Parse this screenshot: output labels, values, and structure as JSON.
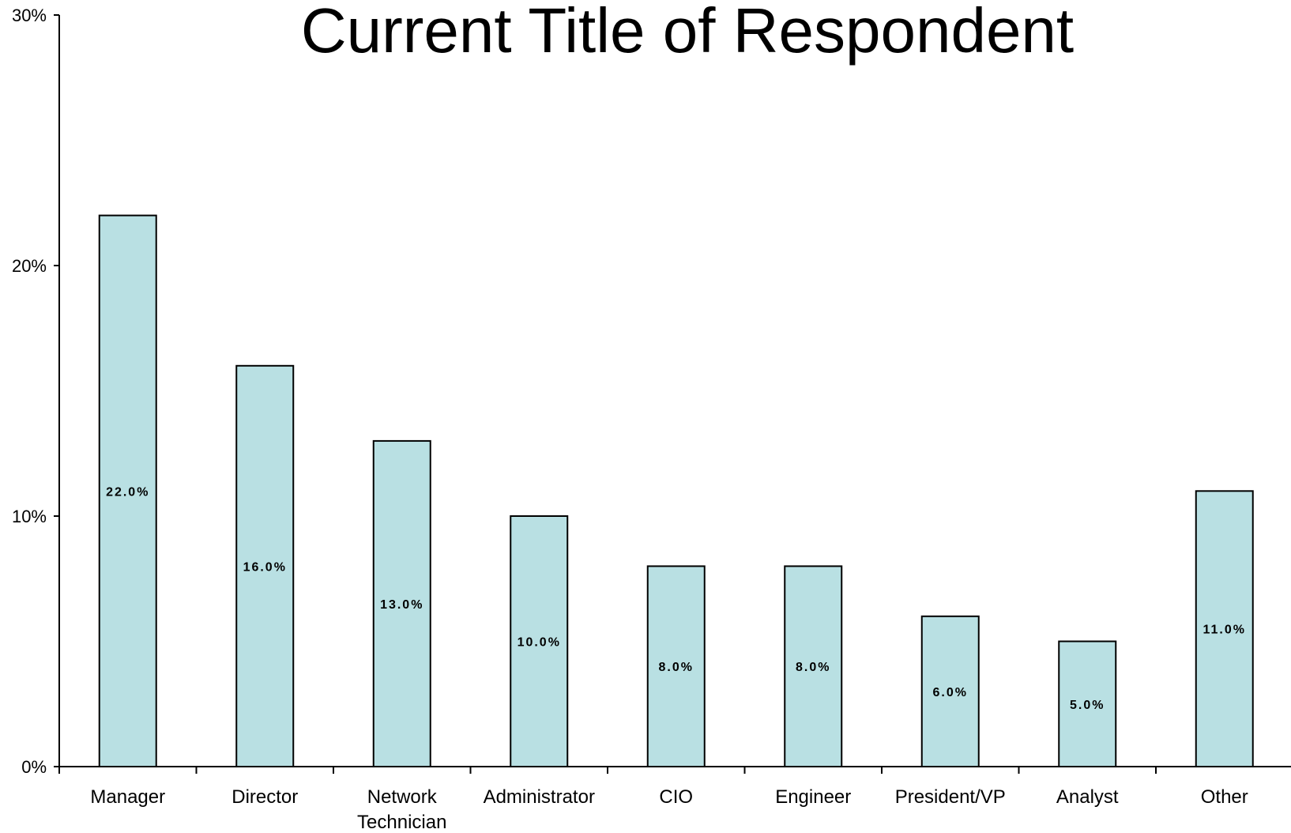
{
  "chart_data": {
    "type": "bar",
    "title": "Current Title of Respondent",
    "xlabel": "",
    "ylabel": "",
    "categories": [
      "Manager",
      "Director",
      "Network Technician",
      "Administrator",
      "CIO",
      "Engineer",
      "President/VP",
      "Analyst",
      "Other"
    ],
    "category_lines": [
      [
        "Manager"
      ],
      [
        "Director"
      ],
      [
        "Network",
        "Technician"
      ],
      [
        "Administrator"
      ],
      [
        "CIO"
      ],
      [
        "Engineer"
      ],
      [
        "President/VP"
      ],
      [
        "Analyst"
      ],
      [
        "Other"
      ]
    ],
    "values": [
      22,
      16,
      13,
      10,
      8,
      8,
      6,
      5,
      11
    ],
    "value_labels": [
      "22.0%",
      "16.0%",
      "13.0%",
      "10.0%",
      "8.0%",
      "8.0%",
      "6.0%",
      "5.0%",
      "11.0%"
    ],
    "ylim": [
      0,
      30
    ],
    "yticks": [
      0,
      10,
      20,
      30
    ],
    "ytick_labels": [
      "0%",
      "10%",
      "20%",
      "30%"
    ],
    "grid": false,
    "bar_color": "#b9e0e3",
    "bar_edge_color": "#000000"
  }
}
